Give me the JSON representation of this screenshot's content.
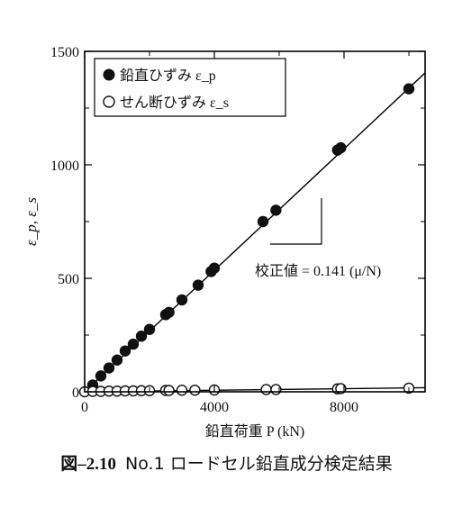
{
  "figure": {
    "number": "図–2.10",
    "caption": "No.1 ロードセル鉛直成分検定結果"
  },
  "chart_data": {
    "type": "scatter",
    "xlabel": "鉛直荷重 P (kN)",
    "ylabel": "ε_p, ε_s",
    "xlim": [
      0,
      10500
    ],
    "ylim": [
      0,
      1500
    ],
    "x_ticks": [
      0,
      4000,
      8000
    ],
    "y_ticks": [
      0,
      500,
      1000,
      1500
    ],
    "grid": false,
    "legend_position": "top-left",
    "annotation": "校正値 = 0.141 (μ/N)",
    "series": [
      {
        "name": "鉛直ひずみ ε_p",
        "marker": "filled-circle",
        "points": [
          [
            250,
            30
          ],
          [
            500,
            70
          ],
          [
            750,
            105
          ],
          [
            1000,
            140
          ],
          [
            1250,
            180
          ],
          [
            1500,
            210
          ],
          [
            1750,
            245
          ],
          [
            2000,
            275
          ],
          [
            2500,
            340
          ],
          [
            2600,
            350
          ],
          [
            3000,
            405
          ],
          [
            3500,
            470
          ],
          [
            3900,
            530
          ],
          [
            4000,
            545
          ],
          [
            5500,
            750
          ],
          [
            5900,
            800
          ],
          [
            7800,
            1065
          ],
          [
            7900,
            1075
          ],
          [
            10000,
            1335
          ]
        ]
      },
      {
        "name": "せん断ひずみ ε_s",
        "marker": "open-circle",
        "points": [
          [
            0,
            0
          ],
          [
            250,
            2
          ],
          [
            500,
            2
          ],
          [
            750,
            3
          ],
          [
            1000,
            3
          ],
          [
            1250,
            4
          ],
          [
            1500,
            4
          ],
          [
            1750,
            5
          ],
          [
            2000,
            5
          ],
          [
            2500,
            6
          ],
          [
            2600,
            6
          ],
          [
            3000,
            7
          ],
          [
            3400,
            7
          ],
          [
            4000,
            8
          ],
          [
            5600,
            10
          ],
          [
            5900,
            10
          ],
          [
            7800,
            13
          ],
          [
            7900,
            14
          ],
          [
            10000,
            16
          ]
        ]
      }
    ],
    "fit_lines": [
      {
        "series": "鉛直ひずみ ε_p",
        "from": [
          0,
          0
        ],
        "to": [
          10500,
          1405
        ]
      },
      {
        "series": "せん断ひずみ ε_s",
        "from": [
          0,
          0
        ],
        "to": [
          10500,
          18
        ]
      }
    ]
  }
}
